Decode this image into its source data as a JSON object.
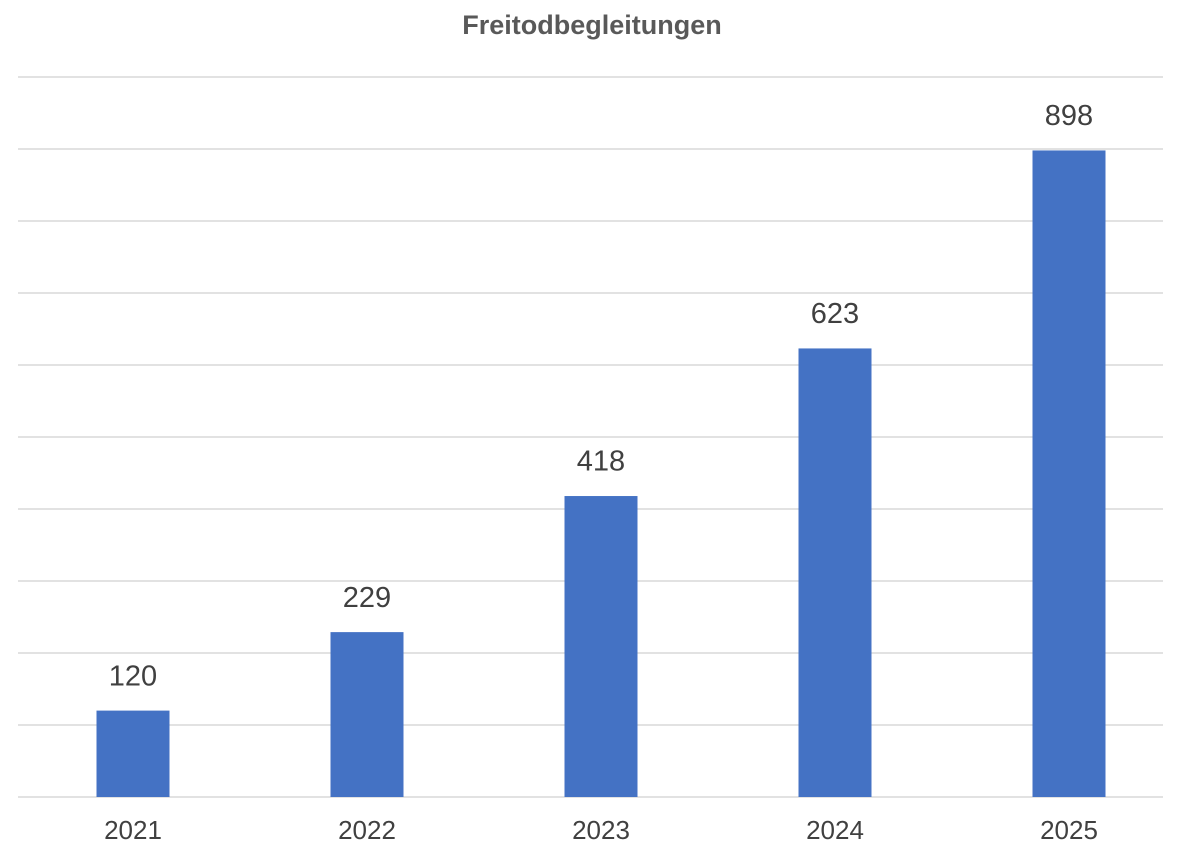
{
  "chart_data": {
    "type": "bar",
    "title": "Freitodbegleitungen",
    "categories": [
      "2021",
      "2022",
      "2023",
      "2024",
      "2025"
    ],
    "values": [
      120,
      229,
      418,
      623,
      898
    ],
    "color": "#4472c4",
    "ylim": [
      0,
      1000
    ],
    "yticks": [
      0,
      100,
      200,
      300,
      400,
      500,
      600,
      700,
      800,
      900,
      1000
    ],
    "grid": true
  }
}
